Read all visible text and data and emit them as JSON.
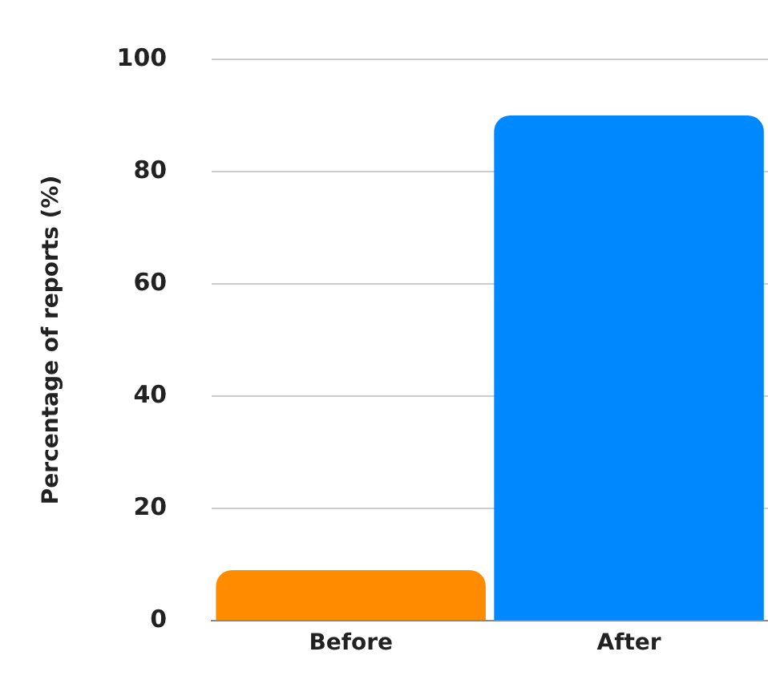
{
  "chart_data": {
    "type": "bar",
    "ylabel": "Percentage of reports (%)",
    "categories": [
      "Before",
      "After"
    ],
    "values": [
      9,
      90
    ],
    "colors": [
      "#ff8c00",
      "#0088ff"
    ],
    "ylim": [
      0,
      100
    ],
    "yticks": [
      0,
      20,
      40,
      60,
      80,
      100
    ],
    "grid": "y",
    "legend": false
  }
}
